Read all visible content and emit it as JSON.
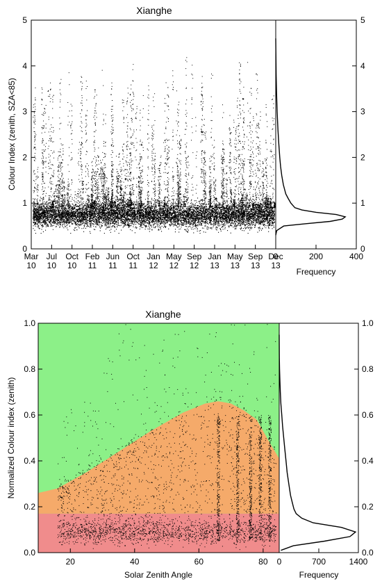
{
  "chart_data": [
    {
      "type": "scatter",
      "title": "Xianghe",
      "ylabel": "Colour Index (zenith, SZA<85)",
      "xlabel": "",
      "ylim": [
        0,
        5
      ],
      "yticks": [
        "0",
        "1",
        "2",
        "3",
        "4",
        "5"
      ],
      "xticks": [
        {
          "month": "Mar",
          "year": "10"
        },
        {
          "month": "Jul",
          "year": "10"
        },
        {
          "month": "Oct",
          "year": "10"
        },
        {
          "month": "Feb",
          "year": "11"
        },
        {
          "month": "Jun",
          "year": "11"
        },
        {
          "month": "Oct",
          "year": "11"
        },
        {
          "month": "Jan",
          "year": "12"
        },
        {
          "month": "May",
          "year": "12"
        },
        {
          "month": "Sep",
          "year": "12"
        },
        {
          "month": "Jan",
          "year": "13"
        },
        {
          "month": "May",
          "year": "13"
        },
        {
          "month": "Sep",
          "year": "13"
        },
        {
          "month": "Dec",
          "year": "13"
        }
      ],
      "series": [
        {
          "values_summary": {
            "baseline": 0.75,
            "min": 0.3,
            "max": 4.6
          }
        }
      ],
      "histogram": {
        "xlabel": "Frequency",
        "xticks": [
          "0",
          "200",
          "400"
        ],
        "xlim": [
          0,
          400
        ],
        "bin_centers": [
          0.3,
          0.4,
          0.5,
          0.55,
          0.6,
          0.65,
          0.7,
          0.75,
          0.8,
          0.85,
          0.9,
          1.0,
          1.1,
          1.2,
          1.4,
          1.6,
          1.8,
          2.0,
          2.3,
          2.6,
          3.0,
          3.4,
          3.8,
          4.2,
          4.6
        ],
        "counts": [
          0,
          5,
          40,
          150,
          270,
          330,
          345,
          300,
          200,
          130,
          95,
          75,
          62,
          50,
          38,
          30,
          24,
          20,
          15,
          11,
          7,
          4,
          2,
          1,
          0
        ]
      }
    },
    {
      "type": "scatter",
      "title": "Xianghe",
      "xlabel": "Solar Zenith Angle",
      "ylabel": "Normalized Colour index (zenith)",
      "xlim": [
        10,
        85
      ],
      "ylim": [
        0,
        1
      ],
      "xticks": [
        "20",
        "40",
        "60",
        "80"
      ],
      "yticks": [
        "0.0",
        "0.2",
        "0.4",
        "0.6",
        "0.8",
        "1.0"
      ],
      "background_regions": [
        {
          "name": "clear",
          "color": "#f08c8c",
          "upper_threshold": 0.17
        },
        {
          "name": "thin",
          "color": "#f5aa6a"
        },
        {
          "name": "cloudy",
          "color": "#8cf088"
        }
      ],
      "orange_upper_boundary": {
        "x": [
          10,
          16,
          25,
          35,
          45,
          55,
          62,
          66,
          70,
          74,
          78,
          82,
          85
        ],
        "y": [
          0.26,
          0.28,
          0.35,
          0.44,
          0.53,
          0.61,
          0.65,
          0.66,
          0.65,
          0.62,
          0.58,
          0.48,
          0.41
        ]
      },
      "histogram": {
        "xlabel": "Frequency",
        "xticks": [
          "0",
          "700",
          "1400"
        ],
        "xlim": [
          0,
          1400
        ],
        "bin_centers": [
          0.01,
          0.03,
          0.05,
          0.07,
          0.09,
          0.11,
          0.13,
          0.15,
          0.17,
          0.19,
          0.22,
          0.25,
          0.3,
          0.35,
          0.4,
          0.45,
          0.5,
          0.55,
          0.6,
          0.65,
          0.7,
          0.75,
          0.8,
          0.85,
          0.9,
          0.95
        ],
        "counts": [
          30,
          250,
          800,
          1250,
          1350,
          1100,
          600,
          400,
          300,
          260,
          230,
          200,
          170,
          140,
          120,
          100,
          80,
          60,
          45,
          30,
          20,
          12,
          6,
          3,
          1,
          0
        ]
      }
    }
  ]
}
